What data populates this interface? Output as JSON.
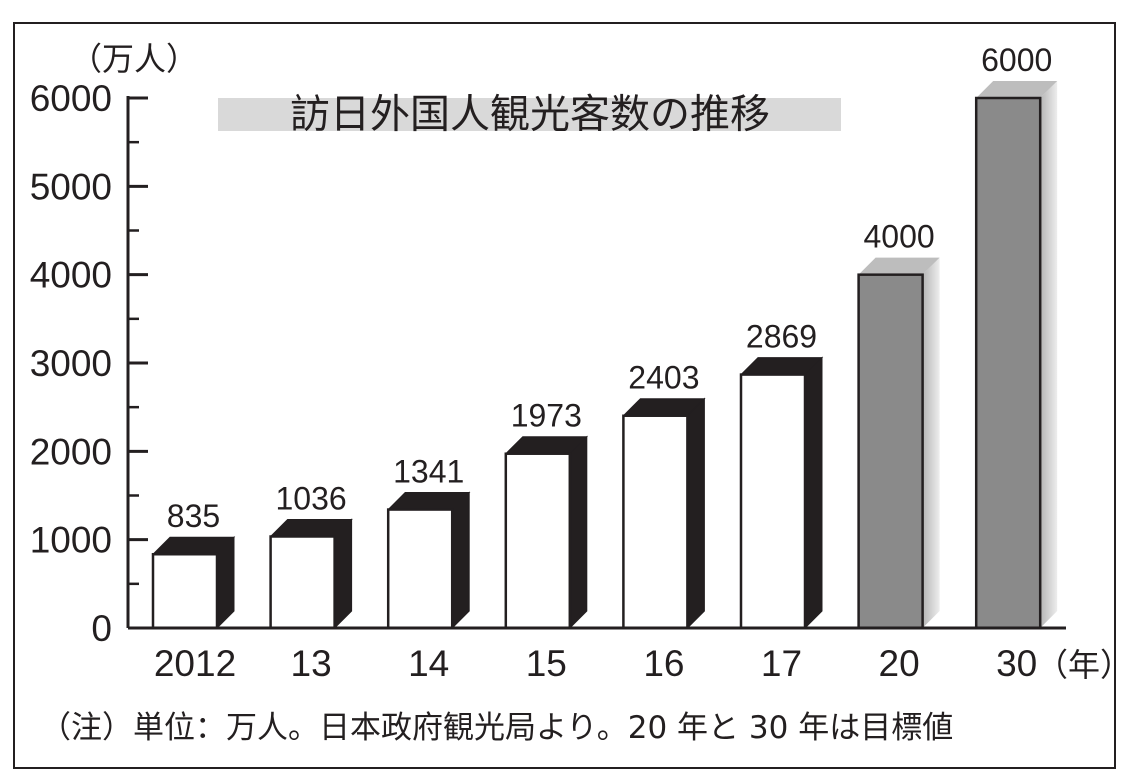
{
  "chart_data": {
    "type": "bar",
    "title": "訪日外国人観光客数の推移",
    "ylabel": "（万人）",
    "xunit": "（年）",
    "categories": [
      "2012",
      "13",
      "14",
      "15",
      "16",
      "17",
      "20",
      "30"
    ],
    "values": [
      835,
      1036,
      1341,
      1973,
      2403,
      2869,
      4000,
      6000
    ],
    "value_labels": [
      "835",
      "1036",
      "1341",
      "1973",
      "2403",
      "2869",
      "4000",
      "6000"
    ],
    "target_flags": [
      false,
      false,
      false,
      false,
      false,
      false,
      true,
      true
    ],
    "ylim": [
      0,
      6000
    ],
    "yticks": [
      "0",
      "1000",
      "2000",
      "3000",
      "4000",
      "5000",
      "6000"
    ],
    "grid": false,
    "colors": {
      "actual_fill": "#ffffff",
      "actual_side": "#231f20",
      "target_fill": "#8a8a8a",
      "target_side": "#c8c8c8",
      "outline": "#231f20",
      "title_band": "#d9d9d9"
    }
  },
  "note": "（注）単位：万人。日本政府観光局より。20 年と 30 年は目標値"
}
